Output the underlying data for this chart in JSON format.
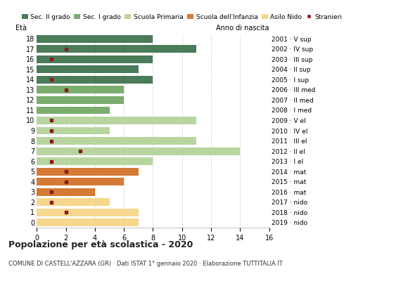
{
  "title": "Popolazione per età scolastica - 2020",
  "subtitle": "COMUNE DI CASTELL'AZZARA (GR) · Dati ISTAT 1° gennaio 2020 · Elaborazione TUTTITALIA.IT",
  "label_left": "Età",
  "label_right": "Anno di nascita",
  "ages": [
    18,
    17,
    16,
    15,
    14,
    13,
    12,
    11,
    10,
    9,
    8,
    7,
    6,
    5,
    4,
    3,
    2,
    1,
    0
  ],
  "year_labels": [
    "2001 · V sup",
    "2002 · IV sup",
    "2003 · III sup",
    "2004 · II sup",
    "2005 · I sup",
    "2006 · III med",
    "2007 · II med",
    "2008 · I med",
    "2009 · V el",
    "2010 · IV el",
    "2011 · III el",
    "2012 · II el",
    "2013 · I el",
    "2014 · mat",
    "2015 · mat",
    "2016 · mat",
    "2017 · nido",
    "2018 · nido",
    "2019 · nido"
  ],
  "bar_values": [
    8,
    11,
    8,
    7,
    8,
    6,
    6,
    5,
    11,
    5,
    11,
    14,
    8,
    7,
    6,
    4,
    5,
    7,
    7
  ],
  "stranieri_values": [
    0,
    2,
    1,
    0,
    1,
    2,
    0,
    0,
    1,
    1,
    1,
    3,
    1,
    2,
    2,
    1,
    1,
    2,
    0
  ],
  "bar_colors": [
    "#4a7c59",
    "#4a7c59",
    "#4a7c59",
    "#4a7c59",
    "#4a7c59",
    "#7aad6e",
    "#7aad6e",
    "#7aad6e",
    "#b8d5a0",
    "#b8d5a0",
    "#b8d5a0",
    "#b8d5a0",
    "#b8d5a0",
    "#d47a35",
    "#d47a35",
    "#d47a35",
    "#f5d78e",
    "#f5d78e",
    "#f5d78e"
  ],
  "legend_labels": [
    "Sec. II grado",
    "Sec. I grado",
    "Scuola Primaria",
    "Scuola dell'Infanzia",
    "Asilo Nido",
    "Stranieri"
  ],
  "legend_colors": [
    "#4a7c59",
    "#7aad6e",
    "#b8d5a0",
    "#d47a35",
    "#f5d78e",
    "#8b1a1a"
  ],
  "xlim": [
    0,
    16
  ],
  "xticks": [
    0,
    2,
    4,
    6,
    8,
    10,
    12,
    14,
    16
  ],
  "background_color": "#ffffff",
  "grid_color": "#cccccc",
  "stranieri_color": "#8b1a1a"
}
